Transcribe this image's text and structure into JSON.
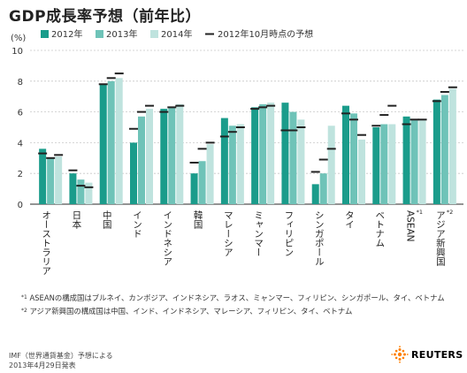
{
  "chart_data": {
    "type": "bar",
    "title": "GDP成長率予想（前年比）",
    "ylabel": "(%)",
    "ylim": [
      0,
      10
    ],
    "yticks": [
      0,
      2,
      4,
      6,
      8,
      10
    ],
    "grid": true,
    "legend_position": "top",
    "categories": [
      "オーストラリア",
      "日本",
      "中国",
      "インド",
      "インドネシア",
      "韓国",
      "マレーシア",
      "ミャンマー",
      "フィリピン",
      "シンガポール",
      "タイ",
      "ベトナム",
      "ASEAN",
      "アジア新興国"
    ],
    "category_superscripts": [
      "",
      "",
      "",
      "",
      "",
      "",
      "",
      "",
      "",
      "",
      "",
      "",
      "*1",
      "*2"
    ],
    "series": [
      {
        "name": "2012年",
        "color": "#1a9c8b",
        "values": [
          3.6,
          2.0,
          7.8,
          4.0,
          6.2,
          2.0,
          5.6,
          6.3,
          6.6,
          1.3,
          6.4,
          5.0,
          5.7,
          6.8
        ]
      },
      {
        "name": "2013年",
        "color": "#6fc3b8",
        "values": [
          3.0,
          1.6,
          8.0,
          5.7,
          6.3,
          2.8,
          5.1,
          6.5,
          6.0,
          2.0,
          5.9,
          5.2,
          5.5,
          7.1
        ]
      },
      {
        "name": "2014年",
        "color": "#bfe3de",
        "values": [
          3.1,
          1.4,
          8.2,
          6.2,
          6.5,
          3.9,
          5.2,
          6.6,
          5.5,
          5.1,
          4.2,
          5.2,
          5.5,
          7.5
        ]
      }
    ],
    "forecast_oct_2012": {
      "name": "2012年10月時点の予想",
      "color": "#222222",
      "values": [
        [
          3.3,
          3.0,
          3.2
        ],
        [
          2.2,
          1.2,
          1.1
        ],
        [
          7.8,
          8.2,
          8.5
        ],
        [
          4.9,
          6.0,
          6.4
        ],
        [
          6.0,
          6.3,
          6.4
        ],
        [
          2.7,
          3.6,
          4.0
        ],
        [
          4.4,
          4.7,
          5.0
        ],
        [
          6.2,
          6.3,
          6.4
        ],
        [
          4.8,
          4.8,
          5.0
        ],
        [
          2.1,
          2.9,
          3.6
        ],
        [
          5.9,
          5.5,
          4.5
        ],
        [
          5.1,
          5.8,
          6.4
        ],
        [
          5.2,
          5.5,
          5.5
        ],
        [
          6.7,
          7.3,
          7.6
        ]
      ]
    }
  },
  "notes": {
    "note1_marker": "*1",
    "note1_text": "ASEANの構成国はブルネイ、カンボジア、インドネシア、ラオス、ミャンマー、フィリピン、シンガポール、タイ、ベトナム",
    "note2_marker": "*2",
    "note2_text": "アジア新興国の構成国は中国、インド、インドネシア、マレーシア、フィリピン、タイ、ベトナム"
  },
  "source": {
    "line1": "IMF（世界通貨基金）予想による",
    "line2": "2013年4月29日発表"
  },
  "brand": {
    "name": "REUTERS",
    "logo_icon": "reuters-dot-logo-icon"
  }
}
